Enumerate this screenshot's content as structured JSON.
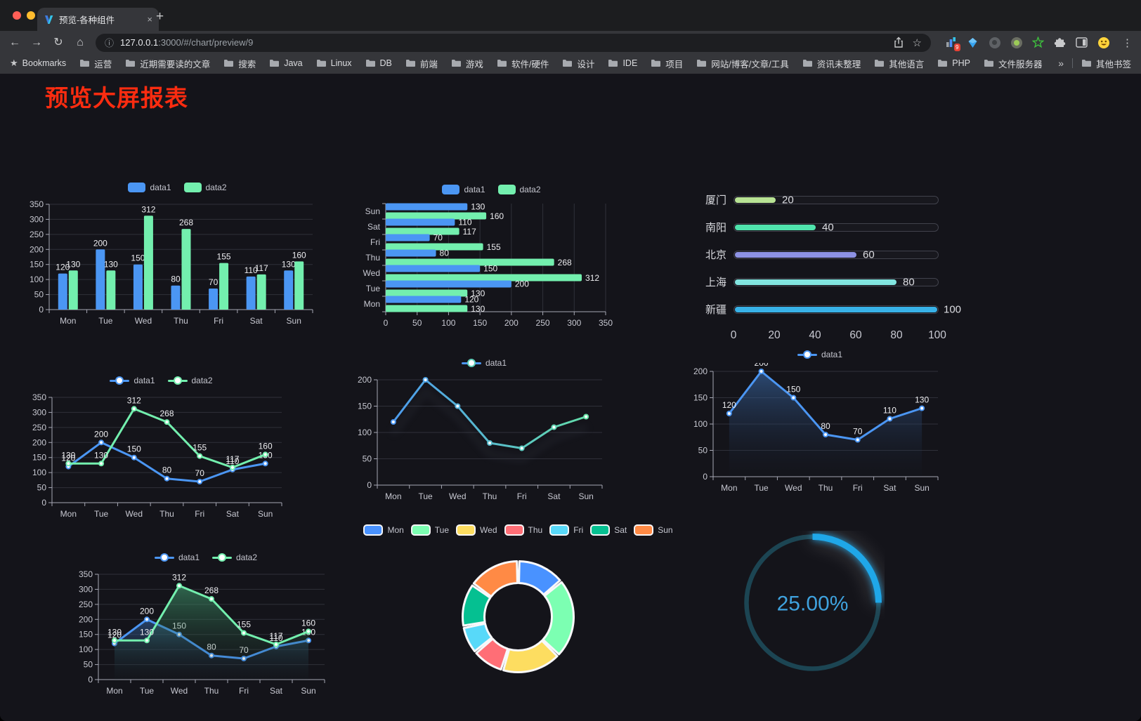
{
  "browser": {
    "tab": {
      "title": "预览-各种组件"
    },
    "url": {
      "host": "127.0.0.1",
      "rest": ":3000/#/chart/preview/9"
    },
    "bookmarks": {
      "label": "Bookmarks",
      "folders": [
        "运营",
        "近期需要读的文章",
        "搜索",
        "Java",
        "Linux",
        "DB",
        "前端",
        "游戏",
        "软件/硬件",
        "设计",
        "IDE",
        "项目",
        "网站/博客/文章/工具",
        "资讯未整理",
        "其他语言",
        "PHP",
        "文件服务器"
      ],
      "overflow": "»",
      "other": "其他书签"
    },
    "extensions": {
      "badge": "9"
    }
  },
  "icons": {
    "back": "←",
    "forward": "→",
    "reload": "↻",
    "home": "⌂",
    "info": "ⓘ",
    "star_outline": "☆",
    "bookmarks_star": "★",
    "menu": "⋮",
    "close": "×",
    "new_tab": "+"
  },
  "page": {
    "title": "预览大屏报表"
  },
  "chart_data": [
    {
      "id": "grouped-bar",
      "type": "bar",
      "categories": [
        "Mon",
        "Tue",
        "Wed",
        "Thu",
        "Fri",
        "Sat",
        "Sun"
      ],
      "series": [
        {
          "name": "data1",
          "color": "#4B96F3",
          "values": [
            120,
            200,
            150,
            80,
            70,
            110,
            130
          ]
        },
        {
          "name": "data2",
          "color": "#73EFAE",
          "values": [
            130,
            130,
            312,
            268,
            155,
            117,
            160
          ]
        }
      ],
      "ylim": [
        0,
        350
      ],
      "ytick": 50,
      "legend_position": "top"
    },
    {
      "id": "grouped-hbar",
      "type": "bar-horizontal",
      "categories": [
        "Mon",
        "Tue",
        "Wed",
        "Thu",
        "Fri",
        "Sat",
        "Sun"
      ],
      "series": [
        {
          "name": "data1",
          "color": "#4B96F3",
          "values": [
            120,
            200,
            150,
            80,
            70,
            110,
            130
          ]
        },
        {
          "name": "data2",
          "color": "#73EFAE",
          "values": [
            130,
            130,
            312,
            268,
            155,
            117,
            160
          ]
        }
      ],
      "xlim": [
        0,
        350
      ],
      "xtick": 50,
      "legend_position": "top"
    },
    {
      "id": "progress-bars",
      "type": "bar-progress",
      "items": [
        {
          "label": "厦门",
          "value": 20,
          "color": "#B8E394"
        },
        {
          "label": "南阳",
          "value": 40,
          "color": "#4FE3AC"
        },
        {
          "label": "北京",
          "value": 60,
          "color": "#8D92E4"
        },
        {
          "label": "上海",
          "value": 80,
          "color": "#82E5E0"
        },
        {
          "label": "新疆",
          "value": 100,
          "color": "#38B2E8"
        }
      ],
      "xticks": [
        0,
        20,
        40,
        60,
        80,
        100
      ],
      "xlim": [
        0,
        100
      ]
    },
    {
      "id": "line-two",
      "type": "line",
      "categories": [
        "Mon",
        "Tue",
        "Wed",
        "Thu",
        "Fri",
        "Sat",
        "Sun"
      ],
      "series": [
        {
          "name": "data1",
          "color": "#4B96F3",
          "values": [
            120,
            200,
            150,
            80,
            70,
            110,
            130
          ],
          "labels": true
        },
        {
          "name": "data2",
          "color": "#73EFAE",
          "values": [
            130,
            130,
            312,
            268,
            155,
            117,
            160
          ],
          "labels": true
        }
      ],
      "ylim": [
        0,
        350
      ],
      "ytick": 50
    },
    {
      "id": "line-gradient",
      "type": "line",
      "categories": [
        "Mon",
        "Tue",
        "Wed",
        "Thu",
        "Fri",
        "Sat",
        "Sun"
      ],
      "series": [
        {
          "name": "data1",
          "color_stops": [
            "#4B96F3",
            "#65E2A5"
          ],
          "values": [
            120,
            200,
            150,
            80,
            70,
            110,
            130
          ],
          "shadow": true
        }
      ],
      "ylim": [
        0,
        200
      ],
      "ytick": 50
    },
    {
      "id": "line-area",
      "type": "line",
      "categories": [
        "Mon",
        "Tue",
        "Wed",
        "Thu",
        "Fri",
        "Sat",
        "Sun"
      ],
      "series": [
        {
          "name": "data1",
          "color": "#4B96F3",
          "values": [
            120,
            200,
            150,
            80,
            70,
            110,
            130
          ],
          "labels": true,
          "area": [
            "rgba(60,110,175,0.6)",
            "rgba(25,35,55,0.03)"
          ]
        }
      ],
      "ylim": [
        0,
        200
      ],
      "ytick": 50
    },
    {
      "id": "line-two-area",
      "type": "line",
      "categories": [
        "Mon",
        "Tue",
        "Wed",
        "Thu",
        "Fri",
        "Sat",
        "Sun"
      ],
      "series": [
        {
          "name": "data1",
          "color": "#4B96F3",
          "values": [
            120,
            200,
            150,
            80,
            70,
            110,
            130
          ],
          "labels": true,
          "area": [
            "rgba(55,105,170,0.55)",
            "rgba(25,35,55,0.03)"
          ]
        },
        {
          "name": "data2",
          "color": "#73EFAE",
          "values": [
            130,
            130,
            312,
            268,
            155,
            117,
            160
          ],
          "labels": true,
          "area": [
            "rgba(70,170,120,0.55)",
            "rgba(25,45,35,0.03)"
          ]
        }
      ],
      "ylim": [
        0,
        350
      ],
      "ytick": 50
    },
    {
      "id": "donut",
      "type": "pie",
      "items": [
        {
          "label": "Mon",
          "value": 120,
          "color": "#4992FF"
        },
        {
          "label": "Tue",
          "value": 200,
          "color": "#7CFFB2"
        },
        {
          "label": "Wed",
          "value": 150,
          "color": "#FDDD60"
        },
        {
          "label": "Thu",
          "value": 80,
          "color": "#FF6E76"
        },
        {
          "label": "Fri",
          "value": 70,
          "color": "#58D9F9"
        },
        {
          "label": "Sat",
          "value": 110,
          "color": "#05C091"
        },
        {
          "label": "Sun",
          "value": 130,
          "color": "#FF8A45"
        }
      ],
      "inner_radius": 48,
      "outer_radius": 79,
      "border_color": "#F8F8FA"
    },
    {
      "id": "gauge",
      "type": "gauge",
      "value": 25,
      "label": "25.00%",
      "color": "#1FA7E8",
      "track": "#1C4553",
      "text_color": "#3FA2DE"
    }
  ]
}
